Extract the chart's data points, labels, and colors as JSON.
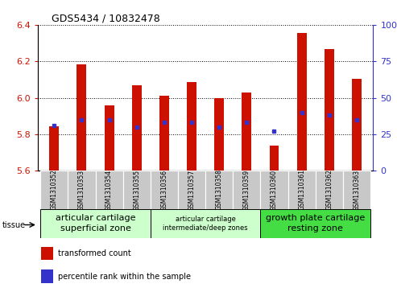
{
  "title": "GDS5434 / 10832478",
  "samples": [
    "GSM1310352",
    "GSM1310353",
    "GSM1310354",
    "GSM1310355",
    "GSM1310356",
    "GSM1310357",
    "GSM1310358",
    "GSM1310359",
    "GSM1310360",
    "GSM1310361",
    "GSM1310362",
    "GSM1310363"
  ],
  "bar_values": [
    5.845,
    6.185,
    5.96,
    6.07,
    6.01,
    6.085,
    5.998,
    6.03,
    5.74,
    6.355,
    6.265,
    6.105
  ],
  "percentile_values": [
    31,
    35,
    35,
    30,
    33,
    33,
    30,
    33,
    27,
    40,
    38,
    35
  ],
  "bar_color": "#cc1100",
  "blue_color": "#3333cc",
  "ylim_left": [
    5.6,
    6.4
  ],
  "ylim_right": [
    0,
    100
  ],
  "yticks_left": [
    5.6,
    5.8,
    6.0,
    6.2,
    6.4
  ],
  "yticks_right": [
    0,
    25,
    50,
    75,
    100
  ],
  "base_value": 5.6,
  "tissue_groups": [
    {
      "label": "articular cartilage\nsuperficial zone",
      "start": 0,
      "end": 4,
      "color": "#ccffcc",
      "fontsize": 8
    },
    {
      "label": "articular cartilage\nintermediate/deep zones",
      "start": 4,
      "end": 8,
      "color": "#ccffcc",
      "fontsize": 6
    },
    {
      "label": "growth plate cartilage\nresting zone",
      "start": 8,
      "end": 12,
      "color": "#44dd44",
      "fontsize": 8
    }
  ],
  "tissue_label": "tissue",
  "legend_red_label": "transformed count",
  "legend_blue_label": "percentile rank within the sample",
  "sample_box_color": "#c8c8c8",
  "bar_width": 0.35
}
